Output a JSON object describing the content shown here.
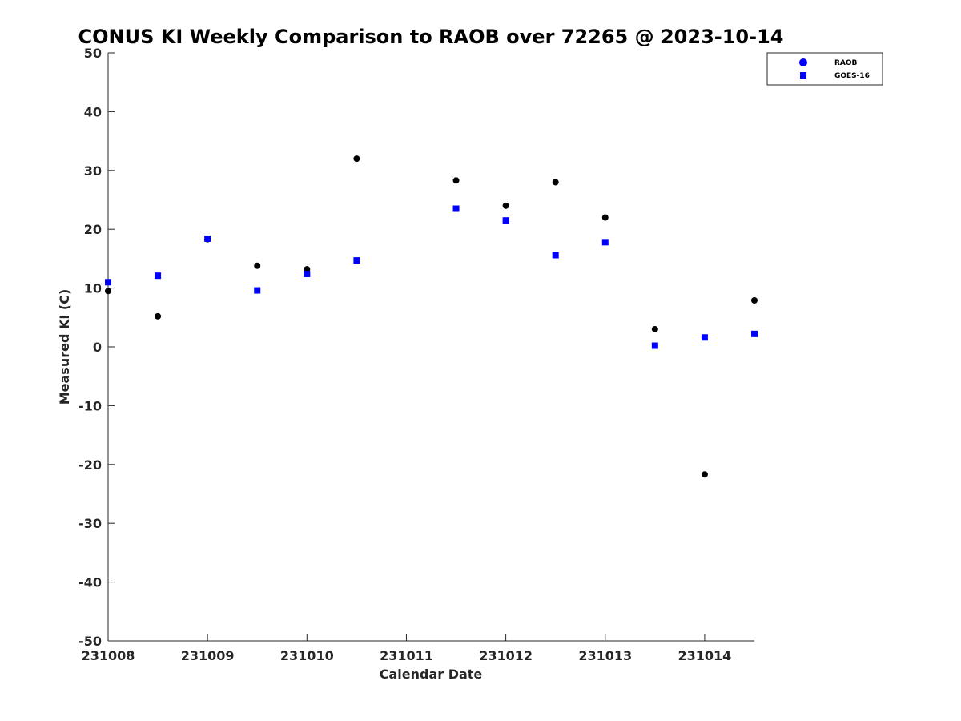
{
  "chart_data": {
    "type": "scatter",
    "title": "CONUS KI Weekly Comparison to RAOB over 72265 @ 2023-10-14",
    "xlabel": "Calendar Date",
    "ylabel": "Measured KI (C)",
    "xlim": [
      0,
      6.5
    ],
    "ylim": [
      -50,
      50
    ],
    "x_ticks": [
      {
        "value": 0,
        "label": "231008"
      },
      {
        "value": 1,
        "label": "231009"
      },
      {
        "value": 2,
        "label": "231010"
      },
      {
        "value": 3,
        "label": "231011"
      },
      {
        "value": 4,
        "label": "231012"
      },
      {
        "value": 5,
        "label": "231013"
      },
      {
        "value": 6,
        "label": "231014"
      }
    ],
    "y_ticks": [
      50,
      40,
      30,
      20,
      10,
      0,
      -10,
      -20,
      -30,
      -40,
      -50
    ],
    "y_tick_labels": [
      "50",
      "40",
      "30",
      "20",
      "10",
      "0",
      "-10",
      "-20",
      "-30",
      "-40",
      "-50"
    ],
    "grid": false,
    "legend_position": "top-right",
    "series": [
      {
        "name": "RAOB",
        "marker": "circle",
        "legend_color": "#0000ff",
        "plot_color": "#000000",
        "points": [
          {
            "x": 0,
            "y": 9.5
          },
          {
            "x": 0.5,
            "y": 5.2
          },
          {
            "x": 1,
            "y": 18.3
          },
          {
            "x": 1.5,
            "y": 13.8
          },
          {
            "x": 2,
            "y": 13.2
          },
          {
            "x": 2.5,
            "y": 32.0
          },
          {
            "x": 3.5,
            "y": 28.3
          },
          {
            "x": 4,
            "y": 24.0
          },
          {
            "x": 4.5,
            "y": 28.0
          },
          {
            "x": 5,
            "y": 22.0
          },
          {
            "x": 5.5,
            "y": 3.0
          },
          {
            "x": 6,
            "y": -21.7
          },
          {
            "x": 6.5,
            "y": 7.9
          }
        ]
      },
      {
        "name": "GOES-16",
        "marker": "square",
        "legend_color": "#0000ff",
        "plot_color": "#0000ff",
        "points": [
          {
            "x": 0,
            "y": 11.0
          },
          {
            "x": 0.5,
            "y": 12.1
          },
          {
            "x": 1,
            "y": 18.4
          },
          {
            "x": 1.5,
            "y": 9.6
          },
          {
            "x": 2,
            "y": 12.4
          },
          {
            "x": 2.5,
            "y": 14.7
          },
          {
            "x": 3.5,
            "y": 23.5
          },
          {
            "x": 4,
            "y": 21.5
          },
          {
            "x": 4.5,
            "y": 15.6
          },
          {
            "x": 5,
            "y": 17.8
          },
          {
            "x": 5.5,
            "y": 0.2
          },
          {
            "x": 6,
            "y": 1.6
          },
          {
            "x": 6.5,
            "y": 2.2
          }
        ]
      }
    ]
  }
}
